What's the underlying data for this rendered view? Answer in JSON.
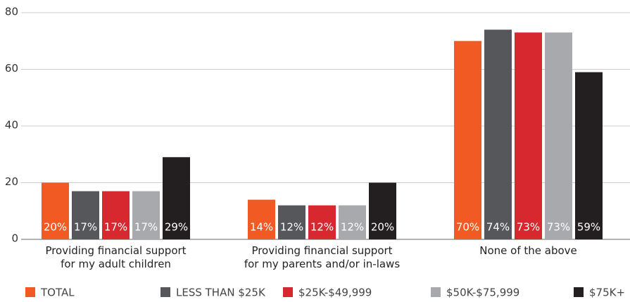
{
  "chart_data": {
    "type": "bar",
    "categories": [
      "Providing financial support\nfor my adult children",
      "Providing financial support\nfor my parents and/or in-laws",
      "None of the above"
    ],
    "series": [
      {
        "name": "TOTAL",
        "color": "#f15a22",
        "values": [
          20,
          14,
          70
        ],
        "value_labels": [
          "20%",
          "14%",
          "70%"
        ]
      },
      {
        "name": "LESS THAN $25K",
        "color": "#55575b",
        "values": [
          17,
          12,
          74
        ],
        "value_labels": [
          "17%",
          "12%",
          "74%"
        ]
      },
      {
        "name": "$25K-$49,999",
        "color": "#d7282f",
        "values": [
          17,
          12,
          73
        ],
        "value_labels": [
          "17%",
          "12%",
          "73%"
        ]
      },
      {
        "name": "$50K-$75,999",
        "color": "#a7a9ac",
        "values": [
          17,
          12,
          73
        ],
        "value_labels": [
          "17%",
          "12%",
          "73%"
        ]
      },
      {
        "name": "$75K+",
        "color": "#231f20",
        "values": [
          29,
          20,
          59
        ],
        "value_labels": [
          "29%",
          "20%",
          "59%"
        ]
      }
    ],
    "ylim": [
      0,
      80
    ],
    "yticks": [
      0,
      20,
      40,
      60,
      80
    ],
    "grid": true,
    "legend": "bottom"
  }
}
